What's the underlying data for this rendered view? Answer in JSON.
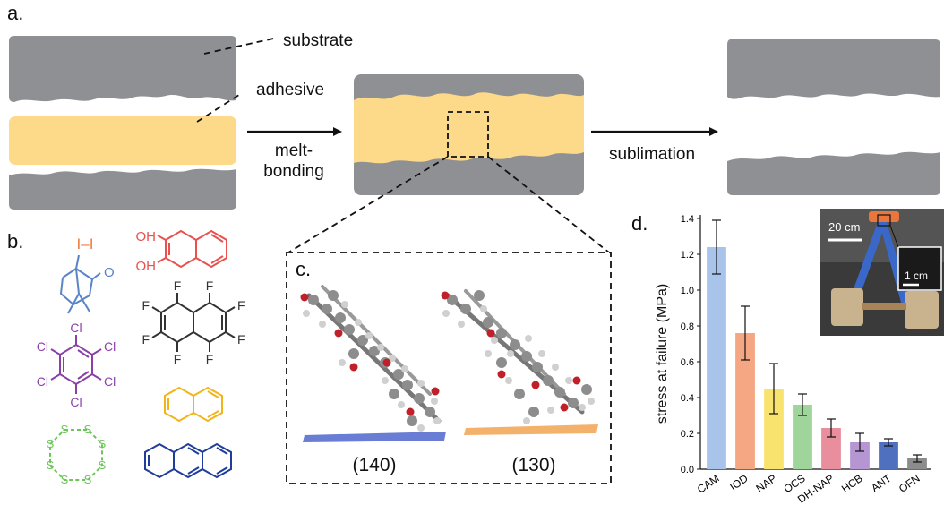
{
  "panels": {
    "a": {
      "label": "a.",
      "substrate_label": "substrate",
      "adhesive_label": "adhesive",
      "step1_line1": "melt-",
      "step1_line2": "bonding",
      "step2": "sublimation"
    },
    "b": {
      "label": "b.",
      "iodine_text": "I–I",
      "oh1": "OH",
      "oh2": "OH",
      "camphor_oxygen": "O",
      "chlorine": "Cl",
      "fluorine": "F",
      "sulfur": "S"
    },
    "c": {
      "label": "c.",
      "facet_left": "(140)",
      "facet_right": "(130)"
    },
    "d": {
      "label": "d.",
      "scale_big": "20 cm",
      "scale_small": "1 cm"
    }
  },
  "colors": {
    "substrate": "#8f9094",
    "adhesive": "#fdd98a",
    "iod": "#f07b3f",
    "cam": "#5a84c6",
    "dhnap": "#e8514d",
    "ofn": "#333333",
    "hcb": "#8a3fa9",
    "nap": "#f2b517",
    "ocs": "#6cc45a",
    "ant": "#1f3d9b"
  },
  "chart_data": {
    "type": "bar",
    "categories": [
      "CAM",
      "IOD",
      "NAP",
      "OCS",
      "DH-NAP",
      "HCB",
      "ANT",
      "OFN"
    ],
    "values": [
      1.24,
      0.76,
      0.45,
      0.36,
      0.23,
      0.15,
      0.15,
      0.06
    ],
    "errors": [
      0.15,
      0.15,
      0.14,
      0.06,
      0.05,
      0.05,
      0.02,
      0.02
    ],
    "bar_colors": [
      "#a9c4ea",
      "#f5a682",
      "#f9e36f",
      "#9fd49a",
      "#e88e9c",
      "#b596d3",
      "#4f6fbf",
      "#8c8c8c"
    ],
    "ylabel": "stress at failure (MPa)",
    "ylim": [
      0,
      1.4
    ],
    "yticks": [
      "0.0",
      "0.2",
      "0.4",
      "0.6",
      "0.8",
      "1.0",
      "1.2",
      "1.4"
    ]
  }
}
